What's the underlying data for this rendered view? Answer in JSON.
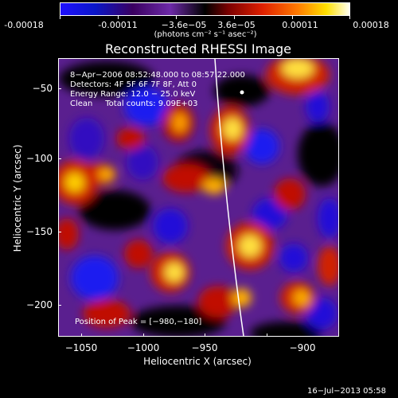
{
  "colorbar": {
    "ticks": [
      "-0.00018",
      "-0.00011",
      "−3.6e−05",
      "3.6e−05",
      "0.00011",
      "0.00018"
    ],
    "units": "(photons cm⁻² s⁻¹ asec⁻²)"
  },
  "title": "Reconstructed RHESSI Image",
  "annotations": {
    "time": "8−Apr−2006 08:52:48.000 to 08:57:22.000",
    "detectors": "Detectors: 4F 5F 6F 7F 8F, Att 0",
    "energy": "Energy Range: 12.0 − 25.0 keV",
    "clean": "Clean     Total counts: 9.09E+03",
    "peak": "Position of Peak = [−980,−180]"
  },
  "axes": {
    "xlabel": "Heliocentric X (arcsec)",
    "ylabel": "Heliocentric Y (arcsec)",
    "xticks": [
      "−1050",
      "−1000",
      "−950",
      "−900"
    ],
    "yticks": [
      "−50",
      "−100",
      "−150",
      "−200"
    ]
  },
  "footer": {
    "date": "16−Jul−2013 05:58"
  }
}
